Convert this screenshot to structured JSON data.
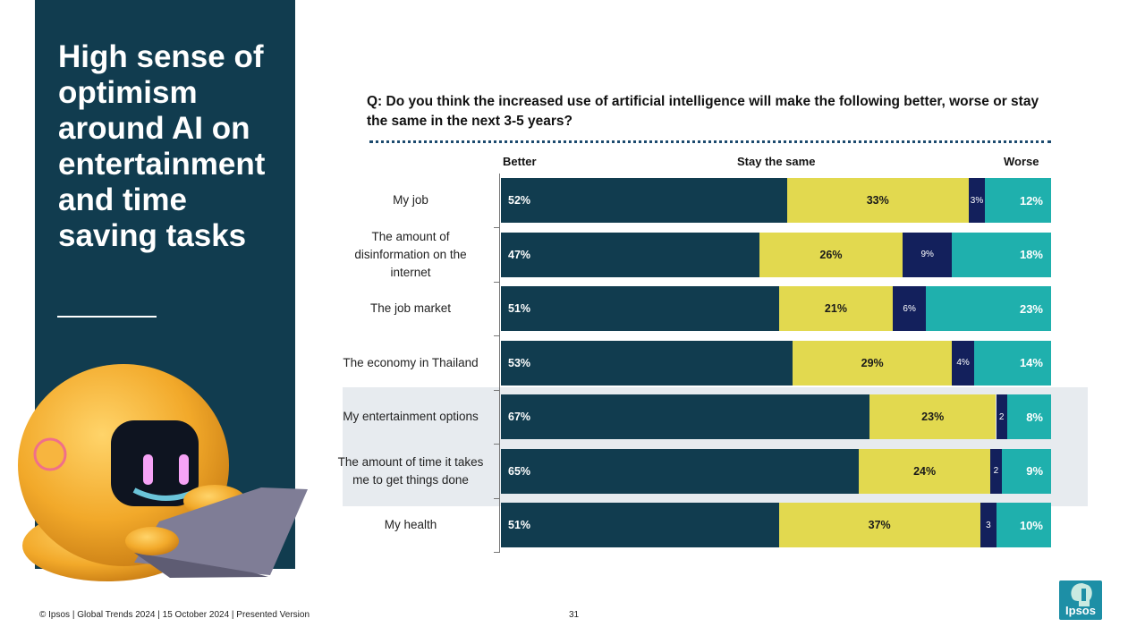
{
  "slide": {
    "headline": "High sense of optimism around AI on entertainment and time saving tasks",
    "question": "Q: Do you think the increased use of artificial intelligence will make the following better, worse or stay the same in the next 3-5 years?",
    "footer": "© Ipsos | Global Trends 2024 | 15 October 2024 | Presented Version",
    "page_number": "31",
    "logo_text": "Ipsos"
  },
  "colors": {
    "better": "#113c4f",
    "same": "#e2d94f",
    "worse": "#13205c",
    "unsure": "#1fb0ad",
    "panel": "#113c4f",
    "highlight": "#e7ebef"
  },
  "chart_data": {
    "type": "bar",
    "orientation": "horizontal",
    "stacked": true,
    "column_headers": [
      "Better",
      "Stay the same",
      "Worse"
    ],
    "categories": [
      "My job",
      "The amount of disinformation on the internet",
      "The job market",
      "The economy in Thailand",
      "My entertainment options",
      "The amount of time it takes me to get things done",
      "My health"
    ],
    "highlighted_categories": [
      "My entertainment options",
      "The amount of time it takes me to get things done"
    ],
    "series": [
      {
        "name": "Better",
        "values": [
          52,
          47,
          51,
          53,
          67,
          65,
          51
        ],
        "labels": [
          "52%",
          "47%",
          "51%",
          "53%",
          "67%",
          "65%",
          "51%"
        ]
      },
      {
        "name": "Stay the same",
        "values": [
          33,
          26,
          21,
          29,
          23,
          24,
          37
        ],
        "labels": [
          "33%",
          "26%",
          "21%",
          "29%",
          "23%",
          "24%",
          "37%"
        ]
      },
      {
        "name": "Worse",
        "values": [
          3,
          9,
          6,
          4,
          2,
          2,
          3
        ],
        "labels": [
          "3%",
          "9%",
          "6%",
          "4%",
          "2",
          "2",
          "3"
        ]
      },
      {
        "name": "Worse (outer)",
        "values": [
          12,
          18,
          23,
          14,
          8,
          9,
          10
        ],
        "labels": [
          "12%",
          "18%",
          "23%",
          "14%",
          "8%",
          "9%",
          "10%"
        ]
      }
    ],
    "xlim": [
      0,
      100
    ]
  }
}
